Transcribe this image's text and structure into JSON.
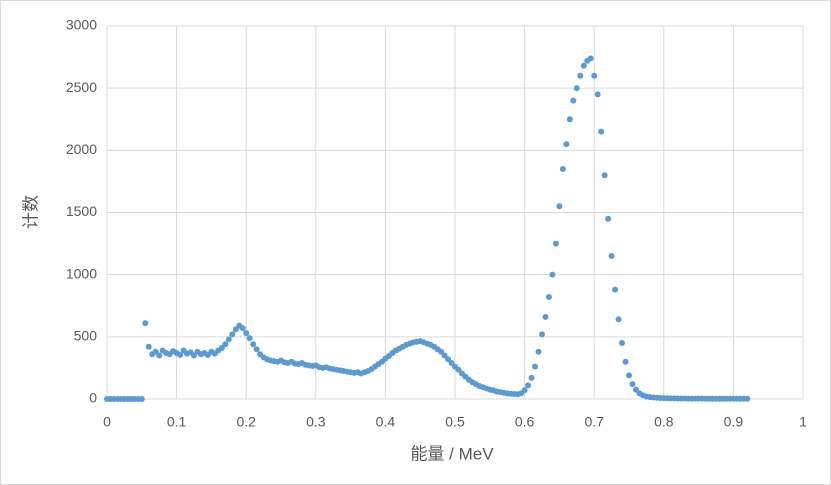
{
  "chart_data": {
    "type": "scatter",
    "xlabel": "能量 / MeV",
    "ylabel": "计数",
    "color": "#5b9bd5",
    "grid": true,
    "xlim": [
      0,
      1
    ],
    "xticks": [
      0,
      0.1,
      0.2,
      0.3,
      0.4,
      0.5,
      0.6,
      0.7,
      0.8,
      0.9,
      1
    ],
    "ylim": [
      0,
      3000
    ],
    "yticks": [
      0,
      500,
      1000,
      1500,
      2000,
      2500,
      3000
    ],
    "x": [
      0,
      0.005,
      0.01,
      0.015,
      0.02,
      0.025,
      0.03,
      0.035,
      0.04,
      0.045,
      0.05,
      0.055,
      0.06,
      0.065,
      0.07,
      0.075,
      0.08,
      0.085,
      0.09,
      0.095,
      0.1,
      0.105,
      0.11,
      0.115,
      0.12,
      0.125,
      0.13,
      0.135,
      0.14,
      0.145,
      0.15,
      0.155,
      0.16,
      0.165,
      0.17,
      0.175,
      0.18,
      0.185,
      0.19,
      0.195,
      0.2,
      0.205,
      0.21,
      0.215,
      0.22,
      0.225,
      0.23,
      0.235,
      0.24,
      0.245,
      0.25,
      0.255,
      0.26,
      0.265,
      0.27,
      0.275,
      0.28,
      0.285,
      0.29,
      0.295,
      0.3,
      0.305,
      0.31,
      0.315,
      0.32,
      0.325,
      0.33,
      0.335,
      0.34,
      0.345,
      0.35,
      0.355,
      0.36,
      0.365,
      0.37,
      0.375,
      0.38,
      0.385,
      0.39,
      0.395,
      0.4,
      0.405,
      0.41,
      0.415,
      0.42,
      0.425,
      0.43,
      0.435,
      0.44,
      0.445,
      0.45,
      0.455,
      0.46,
      0.465,
      0.47,
      0.475,
      0.48,
      0.485,
      0.49,
      0.495,
      0.5,
      0.505,
      0.51,
      0.515,
      0.52,
      0.525,
      0.53,
      0.535,
      0.54,
      0.545,
      0.55,
      0.555,
      0.56,
      0.565,
      0.57,
      0.575,
      0.58,
      0.585,
      0.59,
      0.595,
      0.6,
      0.605,
      0.61,
      0.615,
      0.62,
      0.625,
      0.63,
      0.635,
      0.64,
      0.645,
      0.65,
      0.655,
      0.66,
      0.665,
      0.67,
      0.675,
      0.68,
      0.685,
      0.69,
      0.695,
      0.7,
      0.705,
      0.71,
      0.715,
      0.72,
      0.725,
      0.73,
      0.735,
      0.74,
      0.745,
      0.75,
      0.755,
      0.76,
      0.765,
      0.77,
      0.775,
      0.78,
      0.785,
      0.79,
      0.795,
      0.8,
      0.805,
      0.81,
      0.815,
      0.82,
      0.825,
      0.83,
      0.835,
      0.84,
      0.845,
      0.85,
      0.855,
      0.86,
      0.865,
      0.87,
      0.875,
      0.88,
      0.885,
      0.89,
      0.895,
      0.9,
      0.905,
      0.91,
      0.915,
      0.92
    ],
    "values": [
      0,
      0,
      0,
      0,
      0,
      0,
      0,
      0,
      0,
      0,
      0,
      610,
      420,
      360,
      380,
      350,
      390,
      370,
      360,
      385,
      370,
      355,
      390,
      365,
      375,
      350,
      380,
      360,
      370,
      355,
      380,
      365,
      390,
      410,
      440,
      480,
      520,
      560,
      590,
      570,
      530,
      490,
      440,
      400,
      360,
      335,
      320,
      310,
      305,
      300,
      310,
      295,
      290,
      300,
      285,
      280,
      290,
      275,
      270,
      265,
      270,
      255,
      250,
      255,
      245,
      240,
      235,
      230,
      225,
      220,
      215,
      210,
      215,
      205,
      215,
      225,
      240,
      260,
      280,
      300,
      325,
      345,
      370,
      390,
      405,
      420,
      435,
      445,
      455,
      460,
      465,
      455,
      445,
      435,
      420,
      400,
      380,
      350,
      320,
      290,
      260,
      235,
      205,
      180,
      155,
      135,
      120,
      105,
      95,
      85,
      75,
      70,
      60,
      55,
      50,
      45,
      42,
      40,
      38,
      45,
      70,
      110,
      170,
      260,
      380,
      520,
      660,
      820,
      1000,
      1250,
      1550,
      1850,
      2050,
      2250,
      2400,
      2500,
      2600,
      2680,
      2720,
      2740,
      2600,
      2450,
      2150,
      1800,
      1450,
      1150,
      880,
      640,
      450,
      300,
      190,
      120,
      75,
      45,
      30,
      20,
      15,
      12,
      10,
      8,
      7,
      6,
      5,
      5,
      4,
      4,
      4,
      3,
      3,
      3,
      3,
      3,
      2,
      2,
      2,
      2,
      2,
      2,
      2,
      2,
      2,
      2,
      2,
      2,
      2
    ]
  }
}
